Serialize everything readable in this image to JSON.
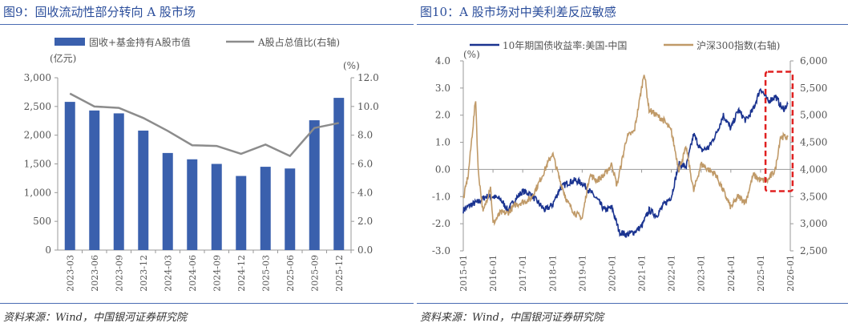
{
  "left": {
    "title": "图9：固收流动性部分转向 A 股市场",
    "source": "资料来源：Wind，中国银河证券研究院",
    "chart_data": {
      "type": "bar+line",
      "categories": [
        "2023-03",
        "2023-06",
        "2023-09",
        "2023-12",
        "2024-03",
        "2024-06",
        "2024-09",
        "2024-12",
        "2025-03",
        "2025-06",
        "2025-09",
        "2025-12"
      ],
      "series": [
        {
          "name": "固收+基金持有A股市值",
          "type": "bar",
          "axis": "left",
          "color": "#3a60ad",
          "values": [
            2580,
            2430,
            2380,
            2080,
            1690,
            1580,
            1500,
            1290,
            1450,
            1420,
            2260,
            2650
          ]
        },
        {
          "name": "A股占总值比(右轴)",
          "type": "line",
          "axis": "right",
          "color": "#8c8c8c",
          "values": [
            10.9,
            10.0,
            9.9,
            9.2,
            8.3,
            7.3,
            7.25,
            6.7,
            7.35,
            6.55,
            8.5,
            8.85
          ]
        }
      ],
      "ylabel": "(亿元)",
      "y2label": "(%)",
      "ylim": [
        0,
        3000
      ],
      "y2lim": [
        0,
        12
      ],
      "yticks": [
        "0",
        "500",
        "1,000",
        "1,500",
        "2,000",
        "2,500",
        "3,000"
      ],
      "y2ticks": [
        "0.0",
        "2.0",
        "4.0",
        "6.0",
        "8.0",
        "10.0",
        "12.0"
      ],
      "legend": "top",
      "grid": false
    }
  },
  "right": {
    "title": "图10：A 股市场对中美利差反应敏感",
    "source": "资料来源：Wind，中国银河证券研究院",
    "chart_data": {
      "type": "line",
      "xticks": [
        "2015-01",
        "2016-01",
        "2017-01",
        "2018-01",
        "2019-01",
        "2020-01",
        "2021-01",
        "2022-01",
        "2023-01",
        "2024-01",
        "2025-01",
        "2026-01"
      ],
      "ylabel": "(%)",
      "ylim": [
        -3,
        4
      ],
      "y2lim": [
        2500,
        6000
      ],
      "yticks": [
        "-3.0",
        "-2.0",
        "-1.0",
        "0.0",
        "1.0",
        "2.0",
        "3.0",
        "4.0"
      ],
      "y2ticks": [
        "2,500",
        "3,000",
        "3,500",
        "4,000",
        "4,500",
        "5,000",
        "5,500",
        "6,000"
      ],
      "legend": "top",
      "grid": false,
      "highlight": {
        "color": "#e02020",
        "style": "dashed",
        "x": [
          "2025-03",
          "2025-12"
        ],
        "y2": [
          3600,
          5800
        ]
      },
      "series": [
        {
          "name": "10年期国债收益率:美国-中国",
          "axis": "left",
          "color": "#1a3390",
          "points": [
            [
              "2015-01",
              -1.5
            ],
            [
              "2015-04",
              -1.3
            ],
            [
              "2015-07",
              -1.2
            ],
            [
              "2015-10",
              -1.0
            ],
            [
              "2016-01",
              -1.0
            ],
            [
              "2016-04",
              -1.1
            ],
            [
              "2016-07",
              -1.5
            ],
            [
              "2016-10",
              -1.1
            ],
            [
              "2017-01",
              -0.8
            ],
            [
              "2017-04",
              -0.9
            ],
            [
              "2017-07",
              -1.2
            ],
            [
              "2017-10",
              -1.5
            ],
            [
              "2018-01",
              -1.3
            ],
            [
              "2018-04",
              -0.7
            ],
            [
              "2018-07",
              -0.5
            ],
            [
              "2018-10",
              -0.4
            ],
            [
              "2019-01",
              -0.5
            ],
            [
              "2019-04",
              -0.8
            ],
            [
              "2019-07",
              -1.1
            ],
            [
              "2019-10",
              -1.5
            ],
            [
              "2020-01",
              -1.4
            ],
            [
              "2020-04",
              -2.3
            ],
            [
              "2020-07",
              -2.4
            ],
            [
              "2020-10",
              -2.3
            ],
            [
              "2021-01",
              -2.1
            ],
            [
              "2021-04",
              -1.5
            ],
            [
              "2021-07",
              -1.7
            ],
            [
              "2021-10",
              -1.3
            ],
            [
              "2022-01",
              -1.0
            ],
            [
              "2022-04",
              0.2
            ],
            [
              "2022-07",
              0.1
            ],
            [
              "2022-10",
              1.3
            ],
            [
              "2023-01",
              0.7
            ],
            [
              "2023-04",
              0.8
            ],
            [
              "2023-07",
              1.3
            ],
            [
              "2023-10",
              2.0
            ],
            [
              "2024-01",
              1.5
            ],
            [
              "2024-04",
              2.2
            ],
            [
              "2024-07",
              1.8
            ],
            [
              "2024-10",
              2.2
            ],
            [
              "2025-01",
              3.0
            ],
            [
              "2025-04",
              2.5
            ],
            [
              "2025-07",
              2.7
            ],
            [
              "2025-10",
              2.2
            ],
            [
              "2025-12",
              2.4
            ]
          ]
        },
        {
          "name": "沪深300指数(右轴)",
          "axis": "right",
          "color": "#c09a68",
          "points": [
            [
              "2015-01",
              3450
            ],
            [
              "2015-03",
              3900
            ],
            [
              "2015-06",
              5300
            ],
            [
              "2015-07",
              4000
            ],
            [
              "2015-09",
              3200
            ],
            [
              "2015-12",
              3700
            ],
            [
              "2016-01",
              3000
            ],
            [
              "2016-04",
              3200
            ],
            [
              "2016-07",
              3200
            ],
            [
              "2016-10",
              3350
            ],
            [
              "2017-01",
              3400
            ],
            [
              "2017-04",
              3450
            ],
            [
              "2017-07",
              3700
            ],
            [
              "2017-10",
              4000
            ],
            [
              "2018-01",
              4300
            ],
            [
              "2018-04",
              3800
            ],
            [
              "2018-07",
              3400
            ],
            [
              "2018-10",
              3200
            ],
            [
              "2019-01",
              3100
            ],
            [
              "2019-04",
              3900
            ],
            [
              "2019-07",
              3800
            ],
            [
              "2019-10",
              3900
            ],
            [
              "2020-01",
              4100
            ],
            [
              "2020-03",
              3700
            ],
            [
              "2020-07",
              4600
            ],
            [
              "2020-10",
              4700
            ],
            [
              "2021-01",
              5500
            ],
            [
              "2021-02",
              5800
            ],
            [
              "2021-04",
              5100
            ],
            [
              "2021-07",
              5000
            ],
            [
              "2021-10",
              4900
            ],
            [
              "2022-01",
              4700
            ],
            [
              "2022-04",
              4000
            ],
            [
              "2022-07",
              4400
            ],
            [
              "2022-10",
              3600
            ],
            [
              "2023-01",
              4100
            ],
            [
              "2023-04",
              4000
            ],
            [
              "2023-07",
              3900
            ],
            [
              "2023-10",
              3600
            ],
            [
              "2024-01",
              3300
            ],
            [
              "2024-04",
              3500
            ],
            [
              "2024-07",
              3400
            ],
            [
              "2024-10",
              3900
            ],
            [
              "2025-01",
              3800
            ],
            [
              "2025-04",
              3800
            ],
            [
              "2025-07",
              4000
            ],
            [
              "2025-09",
              4600
            ],
            [
              "2025-12",
              4600
            ]
          ]
        }
      ]
    }
  }
}
